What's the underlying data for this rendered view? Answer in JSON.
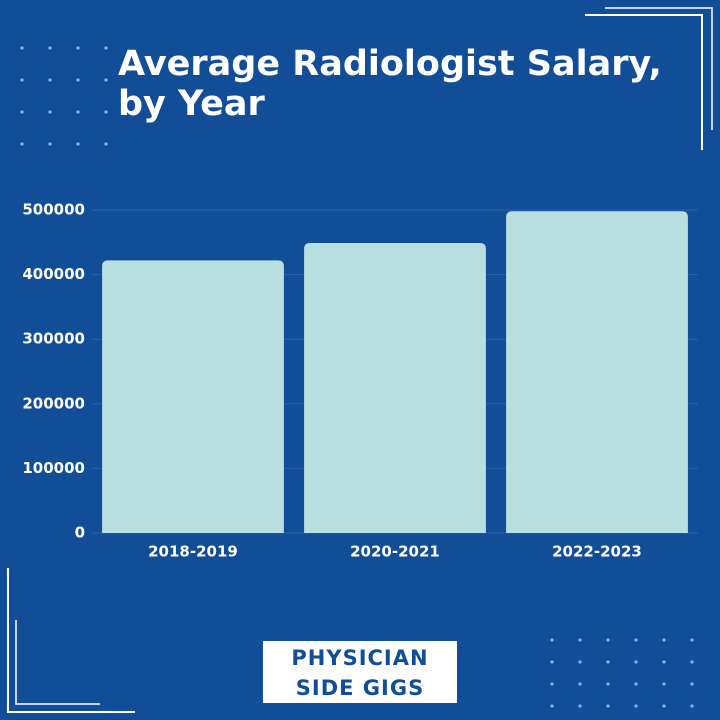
{
  "chart_data": {
    "type": "bar",
    "title": "Average Radiologist Salary, by Year",
    "categories": [
      "2018-2019",
      "2020-2021",
      "2022-2023"
    ],
    "values": [
      422000,
      449000,
      498000
    ],
    "color": "#b9dfe0",
    "ylim": [
      0,
      500000
    ],
    "yticks": [
      0,
      100000,
      200000,
      300000,
      400000,
      500000
    ],
    "grid": true
  },
  "logo": {
    "lines": [
      "PHYSICIAN",
      "SIDE GIGS"
    ]
  }
}
